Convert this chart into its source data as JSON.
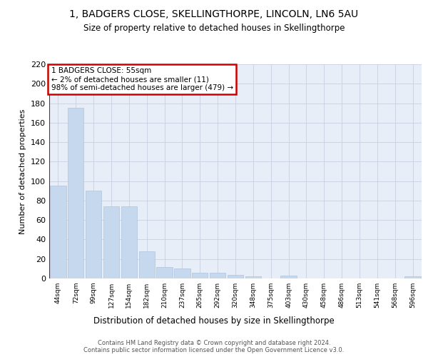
{
  "title1": "1, BADGERS CLOSE, SKELLINGTHORPE, LINCOLN, LN6 5AU",
  "title2": "Size of property relative to detached houses in Skellingthorpe",
  "xlabel": "Distribution of detached houses by size in Skellingthorpe",
  "ylabel": "Number of detached properties",
  "categories": [
    "44sqm",
    "72sqm",
    "99sqm",
    "127sqm",
    "154sqm",
    "182sqm",
    "210sqm",
    "237sqm",
    "265sqm",
    "292sqm",
    "320sqm",
    "348sqm",
    "375sqm",
    "403sqm",
    "430sqm",
    "458sqm",
    "486sqm",
    "513sqm",
    "541sqm",
    "568sqm",
    "596sqm"
  ],
  "values": [
    95,
    175,
    90,
    74,
    74,
    28,
    12,
    10,
    6,
    6,
    4,
    2,
    0,
    3,
    0,
    0,
    0,
    0,
    0,
    0,
    2
  ],
  "bar_color": "#c5d8ed",
  "bar_edge_color": "#b0c4de",
  "annotation_line1": "1 BADGERS CLOSE: 55sqm",
  "annotation_line2": "← 2% of detached houses are smaller (11)",
  "annotation_line3": "98% of semi-detached houses are larger (479) →",
  "annotation_box_color": "#ffffff",
  "annotation_box_edge_color": "#cc0000",
  "vline_color": "#cc0000",
  "footer_text": "Contains HM Land Registry data © Crown copyright and database right 2024.\nContains public sector information licensed under the Open Government Licence v3.0.",
  "background_color": "#e8eef8",
  "ylim": [
    0,
    220
  ],
  "yticks": [
    0,
    20,
    40,
    60,
    80,
    100,
    120,
    140,
    160,
    180,
    200,
    220
  ]
}
